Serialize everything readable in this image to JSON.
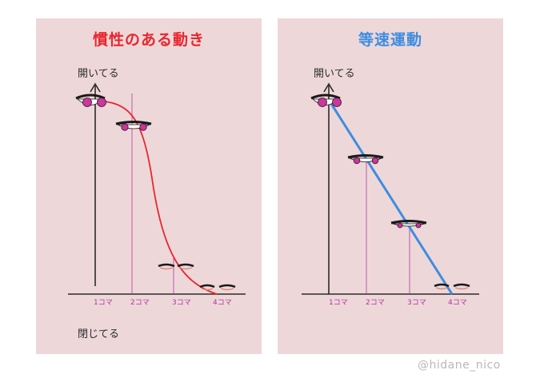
{
  "left_panel": {
    "title": "慣性のある動き",
    "title_color": "#e8272d",
    "curve_color": "#e8272d",
    "y_top_label": "開いてる",
    "y_bottom_label": "閉じてる",
    "ticks": [
      "1コマ",
      "2コマ",
      "3コマ",
      "4コマ"
    ],
    "eye_openness": [
      1.0,
      0.85,
      0.12,
      0.0
    ]
  },
  "right_panel": {
    "title": "等速運動",
    "title_color": "#3d8de0",
    "line_color": "#3d8de0",
    "y_top_label": "開いてる",
    "ticks": [
      "1コマ",
      "2コマ",
      "3コマ",
      "4コマ"
    ],
    "eye_openness": [
      1.0,
      0.67,
      0.33,
      0.0
    ]
  },
  "colors": {
    "panel_bg": "#eed7d9",
    "tick_lines": "#b0389e",
    "iris": "#c9389a"
  },
  "icons": [
    "eye-open-icon",
    "eye-half-icon",
    "eye-closed-icon"
  ],
  "credit": "@hidane_nico"
}
